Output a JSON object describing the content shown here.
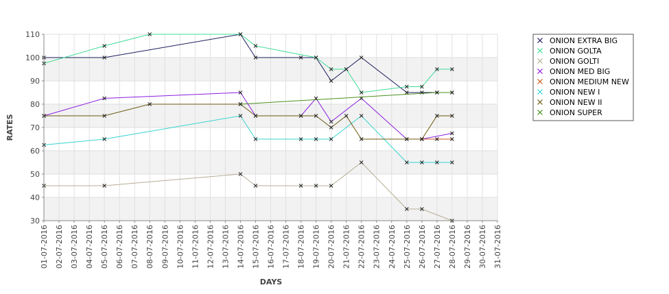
{
  "chart_data": {
    "type": "line",
    "title": "",
    "xlabel": "DAYS",
    "ylabel": "RATES",
    "ylim": [
      30,
      110
    ],
    "yticks": [
      30,
      40,
      50,
      60,
      70,
      80,
      90,
      100,
      110
    ],
    "x_range": [
      1,
      31
    ],
    "categories": [
      "01-07-2016",
      "02-07-2016",
      "03-07-2016",
      "04-07-2016",
      "05-07-2016",
      "06-07-2016",
      "07-07-2016",
      "08-07-2016",
      "09-07-2016",
      "10-07-2016",
      "11-07-2016",
      "12-07-2016",
      "13-07-2016",
      "14-07-2016",
      "15-07-2016",
      "16-07-2016",
      "17-07-2016",
      "18-07-2016",
      "19-07-2016",
      "20-07-2016",
      "21-07-2016",
      "22-07-2016",
      "23-07-2016",
      "24-07-2016",
      "25-07-2016",
      "26-07-2016",
      "27-07-2016",
      "28-07-2016",
      "29-07-2016",
      "30-07-2016",
      "31-07-2016"
    ],
    "grid": true,
    "legend_position": "right",
    "series": [
      {
        "name": "ONION EXTRA BIG",
        "color": "#1a1a5e",
        "points": [
          [
            1,
            100
          ],
          [
            5,
            100
          ],
          [
            14,
            110
          ],
          [
            15,
            100
          ],
          [
            18,
            100
          ],
          [
            19,
            100
          ],
          [
            20,
            90
          ],
          [
            21,
            95
          ],
          [
            22,
            100
          ],
          [
            25,
            85
          ],
          [
            26,
            85
          ],
          [
            27,
            85
          ],
          [
            28,
            85
          ]
        ]
      },
      {
        "name": "ONION GOLTA",
        "color": "#3ddc97",
        "points": [
          [
            1,
            97.5
          ],
          [
            5,
            105
          ],
          [
            8,
            110
          ],
          [
            14,
            110
          ],
          [
            15,
            105
          ],
          [
            19,
            100
          ],
          [
            20,
            95
          ],
          [
            21,
            95
          ],
          [
            22,
            85
          ],
          [
            25,
            87.5
          ],
          [
            26,
            87.5
          ],
          [
            27,
            95
          ],
          [
            28,
            95
          ]
        ]
      },
      {
        "name": "ONION GOLTI",
        "color": "#b5ad95",
        "points": [
          [
            1,
            45
          ],
          [
            5,
            45
          ],
          [
            14,
            50
          ],
          [
            15,
            45
          ],
          [
            18,
            45
          ],
          [
            19,
            45
          ],
          [
            20,
            45
          ],
          [
            22,
            55
          ],
          [
            25,
            35
          ],
          [
            26,
            35
          ],
          [
            28,
            30
          ]
        ]
      },
      {
        "name": "ONION MED BIG",
        "color": "#8a1ce0",
        "points": [
          [
            1,
            75
          ],
          [
            5,
            82.5
          ],
          [
            14,
            85
          ],
          [
            15,
            75
          ],
          [
            18,
            75
          ],
          [
            19,
            82.5
          ],
          [
            20,
            72.5
          ],
          [
            22,
            82.5
          ],
          [
            25,
            65
          ],
          [
            26,
            65
          ],
          [
            28,
            67.5
          ]
        ]
      },
      {
        "name": "ONION MEDIUM NEW",
        "color": "#c85a1e",
        "points": [
          [
            26,
            65
          ],
          [
            27,
            65
          ],
          [
            28,
            65
          ]
        ]
      },
      {
        "name": "ONION NEW I",
        "color": "#35d4d0",
        "points": [
          [
            1,
            62.5
          ],
          [
            5,
            65
          ],
          [
            14,
            75
          ],
          [
            15,
            65
          ],
          [
            18,
            65
          ],
          [
            19,
            65
          ],
          [
            20,
            65
          ],
          [
            22,
            75
          ],
          [
            25,
            55
          ],
          [
            26,
            55
          ],
          [
            27,
            55
          ],
          [
            28,
            55
          ]
        ]
      },
      {
        "name": "ONION NEW II",
        "color": "#6b5a12",
        "points": [
          [
            1,
            75
          ],
          [
            5,
            75
          ],
          [
            8,
            80
          ],
          [
            14,
            80
          ],
          [
            15,
            75
          ],
          [
            18,
            75
          ],
          [
            19,
            75
          ],
          [
            20,
            70
          ],
          [
            21,
            75
          ],
          [
            22,
            65
          ],
          [
            25,
            65
          ],
          [
            26,
            65
          ],
          [
            27,
            75
          ],
          [
            28,
            75
          ]
        ]
      },
      {
        "name": "ONION SUPER",
        "color": "#4a8f1c",
        "points": [
          [
            14,
            80
          ],
          [
            27,
            85
          ],
          [
            28,
            85
          ]
        ]
      }
    ]
  }
}
